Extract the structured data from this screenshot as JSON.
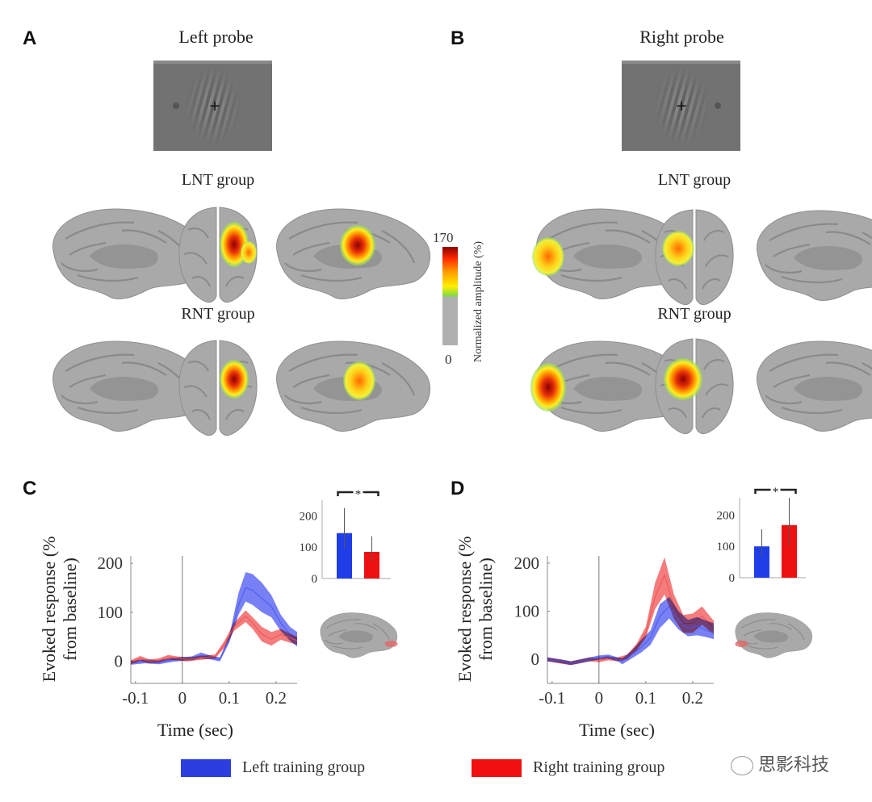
{
  "figure": {
    "panels": {
      "A": {
        "letter": "A",
        "title": "Left probe",
        "groups": [
          "LNT group",
          "RNT group"
        ]
      },
      "B": {
        "letter": "B",
        "title": "Right probe",
        "groups": [
          "LNT group",
          "RNT group"
        ]
      },
      "C": {
        "letter": "C"
      },
      "D": {
        "letter": "D"
      }
    },
    "colorbar": {
      "max_label": "170",
      "min_label": "0",
      "label": "Normalized amplitude (%)",
      "colors": [
        "#b0b0b0",
        "#7dd84a",
        "#ffee00",
        "#ff9a00",
        "#ff2a00",
        "#8b0000"
      ]
    },
    "legend": [
      {
        "label": "Left training group",
        "color": "#2b3ee0"
      },
      {
        "label": "Right training group",
        "color": "#f01010"
      }
    ],
    "watermark": "思影科技",
    "stimulus": {
      "fixation": "+"
    }
  },
  "chart_data": [
    {
      "id": "C-main",
      "type": "line",
      "title": "",
      "xlabel": "Time (sec)",
      "ylabel": "Evoked response (% from baseline)",
      "xlim": [
        -0.11,
        0.245
      ],
      "ylim": [
        -45,
        215
      ],
      "xticks": [
        -0.1,
        0,
        0.1,
        0.2
      ],
      "xtick_labels": [
        "-0.1",
        "0",
        "0.1",
        "0.2"
      ],
      "yticks": [
        0,
        100,
        200
      ],
      "ytick_labels": [
        "0",
        "100",
        "200"
      ],
      "vline_x": 0,
      "series": [
        {
          "name": "Left training group",
          "color": "#4a55f0",
          "x": [
            -0.11,
            -0.08,
            -0.05,
            -0.02,
            0.0,
            0.02,
            0.04,
            0.06,
            0.08,
            0.1,
            0.12,
            0.135,
            0.15,
            0.17,
            0.19,
            0.21,
            0.23,
            0.245
          ],
          "mean": [
            -3,
            0,
            -2,
            3,
            5,
            6,
            12,
            8,
            4,
            45,
            115,
            150,
            145,
            128,
            112,
            78,
            55,
            45
          ],
          "lower": [
            -7,
            -4,
            -6,
            -1,
            1,
            2,
            6,
            4,
            0,
            38,
            95,
            122,
            115,
            100,
            90,
            62,
            42,
            30
          ],
          "upper": [
            1,
            4,
            2,
            7,
            9,
            10,
            18,
            12,
            8,
            52,
            140,
            182,
            178,
            160,
            135,
            95,
            70,
            60
          ]
        },
        {
          "name": "Right training group",
          "color": "#f05050",
          "x": [
            -0.11,
            -0.09,
            -0.07,
            -0.05,
            -0.03,
            -0.01,
            0.01,
            0.03,
            0.05,
            0.07,
            0.09,
            0.11,
            0.135,
            0.15,
            0.17,
            0.19,
            0.21,
            0.23,
            0.245
          ],
          "mean": [
            -2,
            6,
            0,
            2,
            8,
            6,
            4,
            6,
            8,
            10,
            35,
            70,
            92,
            78,
            55,
            45,
            55,
            48,
            42
          ],
          "lower": [
            -6,
            1,
            -4,
            -2,
            3,
            2,
            0,
            2,
            4,
            6,
            28,
            62,
            80,
            66,
            40,
            32,
            44,
            38,
            34
          ],
          "upper": [
            2,
            11,
            4,
            6,
            13,
            10,
            8,
            10,
            12,
            14,
            42,
            78,
            104,
            90,
            70,
            60,
            66,
            56,
            50
          ]
        }
      ]
    },
    {
      "id": "C-inset",
      "type": "bar",
      "categories": [
        "Left training group",
        "Right training group"
      ],
      "values": [
        145,
        85
      ],
      "error_upper": [
        225,
        135
      ],
      "error_lower": [
        95,
        55
      ],
      "colors": [
        "#1f3ee8",
        "#ee1111"
      ],
      "ylim": [
        0,
        250
      ],
      "yticks": [
        0,
        100,
        200
      ],
      "ytick_labels": [
        "0",
        "100",
        "200"
      ],
      "significance": "*"
    },
    {
      "id": "D-main",
      "type": "line",
      "title": "",
      "xlabel": "Time (sec)",
      "ylabel": "Evoked response (% from baseline)",
      "xlim": [
        -0.11,
        0.245
      ],
      "ylim": [
        -50,
        215
      ],
      "xticks": [
        -0.1,
        0,
        0.1,
        0.2
      ],
      "xtick_labels": [
        "-0.1",
        "0",
        "0.1",
        "0.2"
      ],
      "yticks": [
        0,
        100,
        200
      ],
      "ytick_labels": [
        "0",
        "100",
        "200"
      ],
      "vline_x": 0,
      "series": [
        {
          "name": "Right training group",
          "color": "#f05050",
          "x": [
            -0.11,
            -0.08,
            -0.06,
            -0.04,
            -0.02,
            0.0,
            0.02,
            0.04,
            0.06,
            0.08,
            0.1,
            0.12,
            0.14,
            0.16,
            0.18,
            0.2,
            0.22,
            0.245
          ],
          "mean": [
            0,
            -5,
            -8,
            -4,
            0,
            -2,
            2,
            0,
            5,
            25,
            55,
            130,
            175,
            110,
            75,
            75,
            90,
            65
          ],
          "lower": [
            -4,
            -9,
            -12,
            -8,
            -4,
            -6,
            -2,
            -4,
            0,
            18,
            45,
            105,
            135,
            85,
            55,
            55,
            72,
            52
          ],
          "upper": [
            4,
            -1,
            -4,
            0,
            4,
            2,
            6,
            4,
            10,
            32,
            68,
            160,
            212,
            135,
            92,
            95,
            110,
            80
          ]
        },
        {
          "name": "Left training group",
          "color": "#4a55f0",
          "x": [
            -0.11,
            -0.08,
            -0.06,
            -0.04,
            -0.02,
            0.0,
            0.02,
            0.04,
            0.05,
            0.07,
            0.09,
            0.11,
            0.13,
            0.15,
            0.17,
            0.19,
            0.21,
            0.23,
            0.245
          ],
          "mean": [
            0,
            -4,
            -8,
            -4,
            0,
            4,
            6,
            0,
            -4,
            10,
            25,
            45,
            90,
            110,
            80,
            65,
            70,
            60,
            55
          ],
          "lower": [
            -4,
            -8,
            -12,
            -8,
            -4,
            0,
            2,
            -4,
            -10,
            2,
            14,
            30,
            65,
            85,
            62,
            48,
            50,
            46,
            42
          ],
          "upper": [
            4,
            0,
            -4,
            0,
            4,
            8,
            10,
            4,
            2,
            18,
            40,
            60,
            115,
            130,
            100,
            82,
            88,
            80,
            75
          ]
        }
      ]
    },
    {
      "id": "D-inset",
      "type": "bar",
      "categories": [
        "Left training group",
        "Right training group"
      ],
      "values": [
        100,
        168
      ],
      "error_upper": [
        155,
        255
      ],
      "error_lower": [
        65,
        100
      ],
      "colors": [
        "#1f3ee8",
        "#ee1111"
      ],
      "ylim": [
        0,
        255
      ],
      "yticks": [
        0,
        100,
        200
      ],
      "ytick_labels": [
        "0",
        "100",
        "200"
      ],
      "significance": "*"
    }
  ]
}
